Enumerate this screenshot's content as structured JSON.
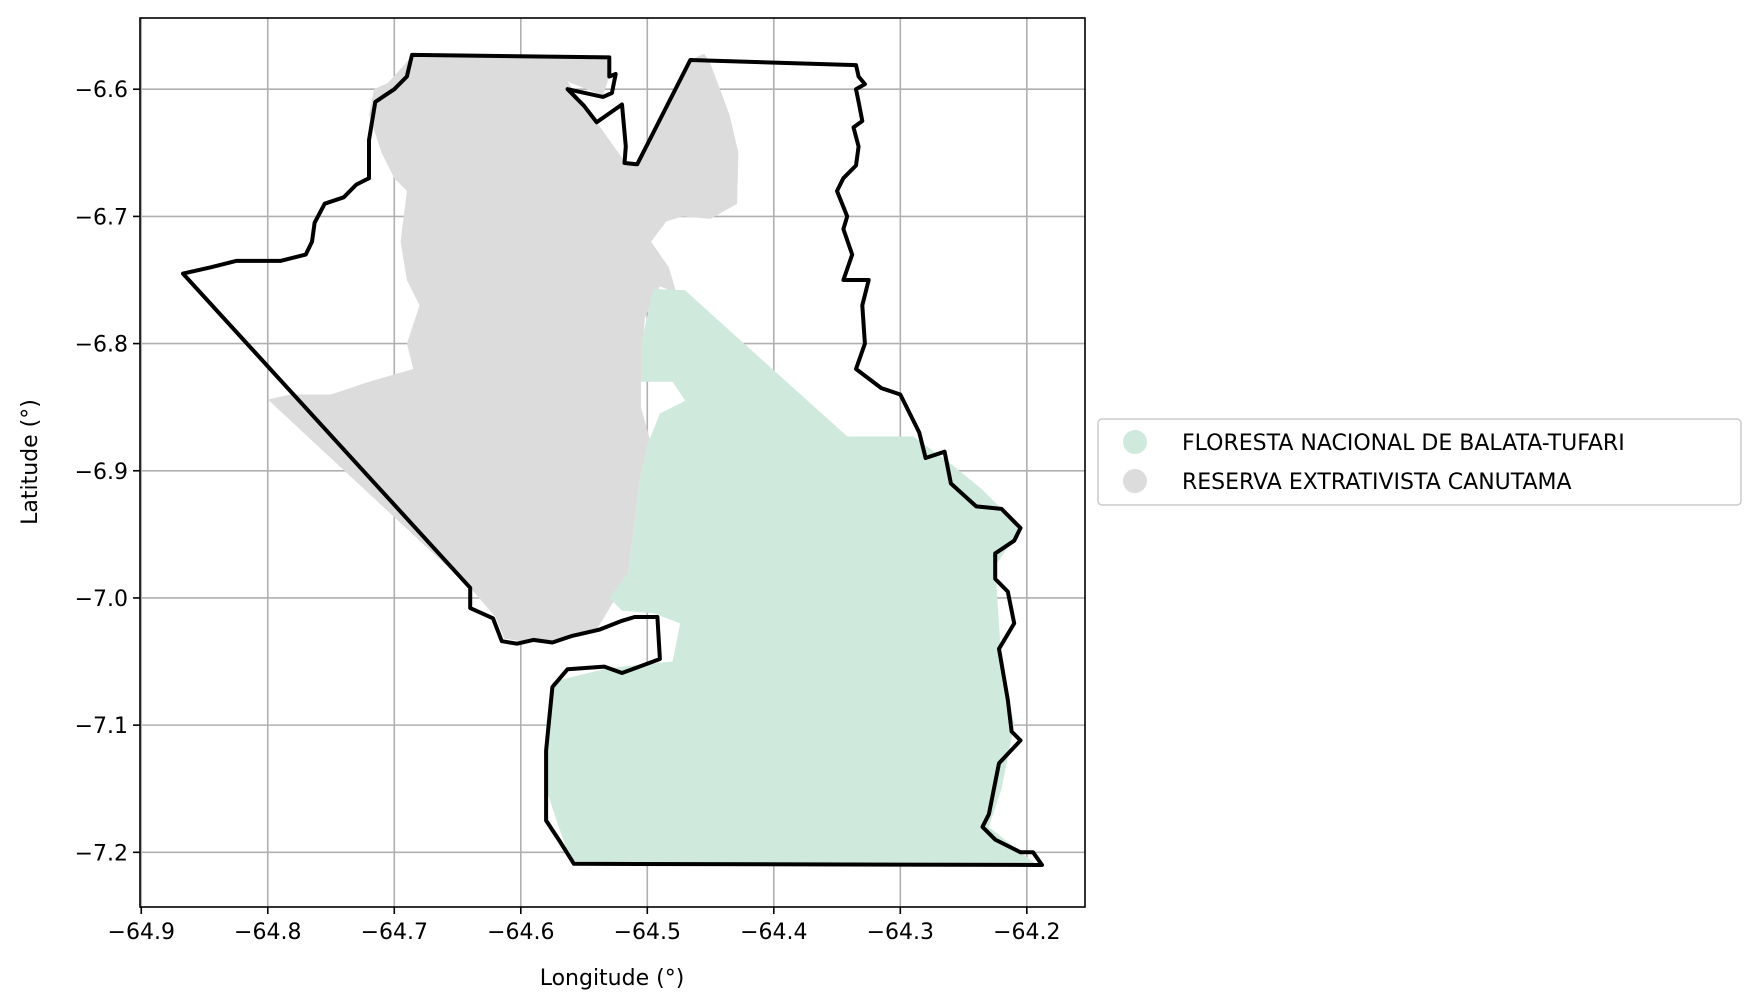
{
  "chart_data": {
    "type": "map",
    "xlabel": "Longitude (°)",
    "ylabel": "Latitude (°)",
    "xlim": [
      -64.901,
      -64.154
    ],
    "ylim": [
      -7.243,
      -6.544
    ],
    "xticks": [
      -64.9,
      -64.8,
      -64.7,
      -64.6,
      -64.5,
      -64.4,
      -64.3,
      -64.2
    ],
    "xtick_labels": [
      "−64.9",
      "−64.8",
      "−64.7",
      "−64.6",
      "−64.5",
      "−64.4",
      "−64.3",
      "−64.2"
    ],
    "yticks": [
      -6.6,
      -6.7,
      -6.8,
      -6.9,
      -7.0,
      -7.1,
      -7.2
    ],
    "ytick_labels": [
      "−6.6",
      "−6.7",
      "−6.8",
      "−6.9",
      "−7.0",
      "−7.1",
      "−7.2"
    ],
    "grid": true,
    "legend": {
      "placement": "center-right outside",
      "entries": [
        {
          "label": "FLORESTA NACIONAL DE BALATA-TUFARI",
          "color": "#cfe9dd"
        },
        {
          "label": "RESERVA EXTRATIVISTA CANUTAMA",
          "color": "#dcdcdc"
        }
      ]
    },
    "regions": [
      {
        "name": "RESERVA EXTRATIVISTA CANUTAMA",
        "color": "#dcdcdc",
        "polygon": [
          [
            -64.686,
            -6.574
          ],
          [
            -64.53,
            -6.576
          ],
          [
            -64.53,
            -6.59
          ],
          [
            -64.535,
            -6.605
          ],
          [
            -64.563,
            -6.594
          ],
          [
            -64.55,
            -6.613
          ],
          [
            -64.54,
            -6.626
          ],
          [
            -64.517,
            -6.658
          ],
          [
            -64.508,
            -6.659
          ],
          [
            -64.466,
            -6.577
          ],
          [
            -64.455,
            -6.572
          ],
          [
            -64.45,
            -6.58
          ],
          [
            -64.435,
            -6.62
          ],
          [
            -64.428,
            -6.65
          ],
          [
            -64.429,
            -6.69
          ],
          [
            -64.45,
            -6.702
          ],
          [
            -64.472,
            -6.7
          ],
          [
            -64.485,
            -6.704
          ],
          [
            -64.497,
            -6.72
          ],
          [
            -64.483,
            -6.74
          ],
          [
            -64.477,
            -6.76
          ],
          [
            -64.462,
            -6.766
          ],
          [
            -64.49,
            -6.755
          ],
          [
            -64.502,
            -6.78
          ],
          [
            -64.505,
            -6.82
          ],
          [
            -64.505,
            -6.85
          ],
          [
            -64.498,
            -6.875
          ],
          [
            -64.505,
            -6.9
          ],
          [
            -64.51,
            -6.94
          ],
          [
            -64.515,
            -6.98
          ],
          [
            -64.525,
            -7.0
          ],
          [
            -64.54,
            -7.025
          ],
          [
            -64.575,
            -7.036
          ],
          [
            -64.6,
            -7.034
          ],
          [
            -64.613,
            -7.032
          ],
          [
            -64.62,
            -7.015
          ],
          [
            -64.64,
            -6.992
          ],
          [
            -64.8,
            -6.844
          ],
          [
            -64.782,
            -6.84
          ],
          [
            -64.75,
            -6.84
          ],
          [
            -64.72,
            -6.83
          ],
          [
            -64.685,
            -6.82
          ],
          [
            -64.69,
            -6.8
          ],
          [
            -64.68,
            -6.77
          ],
          [
            -64.69,
            -6.75
          ],
          [
            -64.695,
            -6.72
          ],
          [
            -64.69,
            -6.68
          ],
          [
            -64.7,
            -6.67
          ],
          [
            -64.71,
            -6.65
          ],
          [
            -64.72,
            -6.62
          ],
          [
            -64.716,
            -6.6
          ],
          [
            -64.705,
            -6.595
          ]
        ]
      },
      {
        "name": "FLORESTA NACIONAL DE BALATA-TUFARI",
        "color": "#cfe9dd",
        "polygon": [
          [
            -64.495,
            -6.757
          ],
          [
            -64.47,
            -6.758
          ],
          [
            -64.457,
            -6.77
          ],
          [
            -64.342,
            -6.873
          ],
          [
            -64.29,
            -6.873
          ],
          [
            -64.262,
            -6.893
          ],
          [
            -64.235,
            -6.915
          ],
          [
            -64.205,
            -6.945
          ],
          [
            -64.225,
            -6.975
          ],
          [
            -64.22,
            -7.05
          ],
          [
            -64.21,
            -7.1
          ],
          [
            -64.22,
            -7.15
          ],
          [
            -64.23,
            -7.18
          ],
          [
            -64.205,
            -7.2
          ],
          [
            -64.192,
            -7.21
          ],
          [
            -64.56,
            -7.208
          ],
          [
            -64.57,
            -7.18
          ],
          [
            -64.58,
            -7.15
          ],
          [
            -64.58,
            -7.1
          ],
          [
            -64.575,
            -7.066
          ],
          [
            -64.53,
            -7.055
          ],
          [
            -64.48,
            -7.05
          ],
          [
            -64.474,
            -7.02
          ],
          [
            -64.495,
            -7.012
          ],
          [
            -64.52,
            -7.01
          ],
          [
            -64.53,
            -7.0
          ],
          [
            -64.515,
            -6.98
          ],
          [
            -64.51,
            -6.94
          ],
          [
            -64.505,
            -6.9
          ],
          [
            -64.5,
            -6.88
          ],
          [
            -64.49,
            -6.855
          ],
          [
            -64.47,
            -6.845
          ],
          [
            -64.48,
            -6.83
          ],
          [
            -64.505,
            -6.83
          ],
          [
            -64.505,
            -6.8
          ]
        ]
      }
    ],
    "outline": [
      [
        -64.686,
        -6.573
      ],
      [
        -64.53,
        -6.575
      ],
      [
        -64.53,
        -6.59
      ],
      [
        -64.525,
        -6.588
      ],
      [
        -64.528,
        -6.603
      ],
      [
        -64.535,
        -6.606
      ],
      [
        -64.563,
        -6.6
      ],
      [
        -64.55,
        -6.613
      ],
      [
        -64.54,
        -6.626
      ],
      [
        -64.52,
        -6.612
      ],
      [
        -64.517,
        -6.645
      ],
      [
        -64.518,
        -6.658
      ],
      [
        -64.508,
        -6.659
      ],
      [
        -64.466,
        -6.577
      ],
      [
        -64.335,
        -6.581
      ],
      [
        -64.333,
        -6.59
      ],
      [
        -64.328,
        -6.596
      ],
      [
        -64.335,
        -6.6
      ],
      [
        -64.333,
        -6.61
      ],
      [
        -64.33,
        -6.625
      ],
      [
        -64.337,
        -6.63
      ],
      [
        -64.333,
        -6.645
      ],
      [
        -64.335,
        -6.66
      ],
      [
        -64.345,
        -6.67
      ],
      [
        -64.35,
        -6.68
      ],
      [
        -64.342,
        -6.7
      ],
      [
        -64.345,
        -6.71
      ],
      [
        -64.338,
        -6.73
      ],
      [
        -64.345,
        -6.75
      ],
      [
        -64.325,
        -6.75
      ],
      [
        -64.33,
        -6.77
      ],
      [
        -64.328,
        -6.8
      ],
      [
        -64.335,
        -6.82
      ],
      [
        -64.315,
        -6.835
      ],
      [
        -64.3,
        -6.84
      ],
      [
        -64.285,
        -6.87
      ],
      [
        -64.28,
        -6.89
      ],
      [
        -64.265,
        -6.885
      ],
      [
        -64.26,
        -6.91
      ],
      [
        -64.24,
        -6.928
      ],
      [
        -64.22,
        -6.93
      ],
      [
        -64.205,
        -6.945
      ],
      [
        -64.21,
        -6.955
      ],
      [
        -64.225,
        -6.965
      ],
      [
        -64.225,
        -6.985
      ],
      [
        -64.215,
        -6.995
      ],
      [
        -64.21,
        -7.02
      ],
      [
        -64.222,
        -7.04
      ],
      [
        -64.215,
        -7.08
      ],
      [
        -64.212,
        -7.105
      ],
      [
        -64.205,
        -7.112
      ],
      [
        -64.222,
        -7.13
      ],
      [
        -64.23,
        -7.17
      ],
      [
        -64.235,
        -7.18
      ],
      [
        -64.225,
        -7.19
      ],
      [
        -64.205,
        -7.2
      ],
      [
        -64.195,
        -7.2
      ],
      [
        -64.188,
        -7.21
      ],
      [
        -64.558,
        -7.209
      ],
      [
        -64.57,
        -7.19
      ],
      [
        -64.58,
        -7.175
      ],
      [
        -64.58,
        -7.14
      ],
      [
        -64.58,
        -7.12
      ],
      [
        -64.575,
        -7.07
      ],
      [
        -64.563,
        -7.056
      ],
      [
        -64.534,
        -7.054
      ],
      [
        -64.52,
        -7.059
      ],
      [
        -64.49,
        -7.048
      ],
      [
        -64.492,
        -7.015
      ],
      [
        -64.51,
        -7.015
      ],
      [
        -64.52,
        -7.018
      ],
      [
        -64.538,
        -7.025
      ],
      [
        -64.56,
        -7.03
      ],
      [
        -64.575,
        -7.035
      ],
      [
        -64.59,
        -7.033
      ],
      [
        -64.603,
        -7.036
      ],
      [
        -64.615,
        -7.034
      ],
      [
        -64.622,
        -7.016
      ],
      [
        -64.64,
        -7.008
      ],
      [
        -64.64,
        -6.992
      ],
      [
        -64.867,
        -6.745
      ],
      [
        -64.845,
        -6.74
      ],
      [
        -64.825,
        -6.735
      ],
      [
        -64.81,
        -6.735
      ],
      [
        -64.79,
        -6.735
      ],
      [
        -64.77,
        -6.73
      ],
      [
        -64.765,
        -6.72
      ],
      [
        -64.763,
        -6.705
      ],
      [
        -64.755,
        -6.69
      ],
      [
        -64.74,
        -6.685
      ],
      [
        -64.73,
        -6.675
      ],
      [
        -64.72,
        -6.67
      ],
      [
        -64.72,
        -6.64
      ],
      [
        -64.715,
        -6.61
      ],
      [
        -64.7,
        -6.6
      ],
      [
        -64.69,
        -6.59
      ]
    ]
  }
}
